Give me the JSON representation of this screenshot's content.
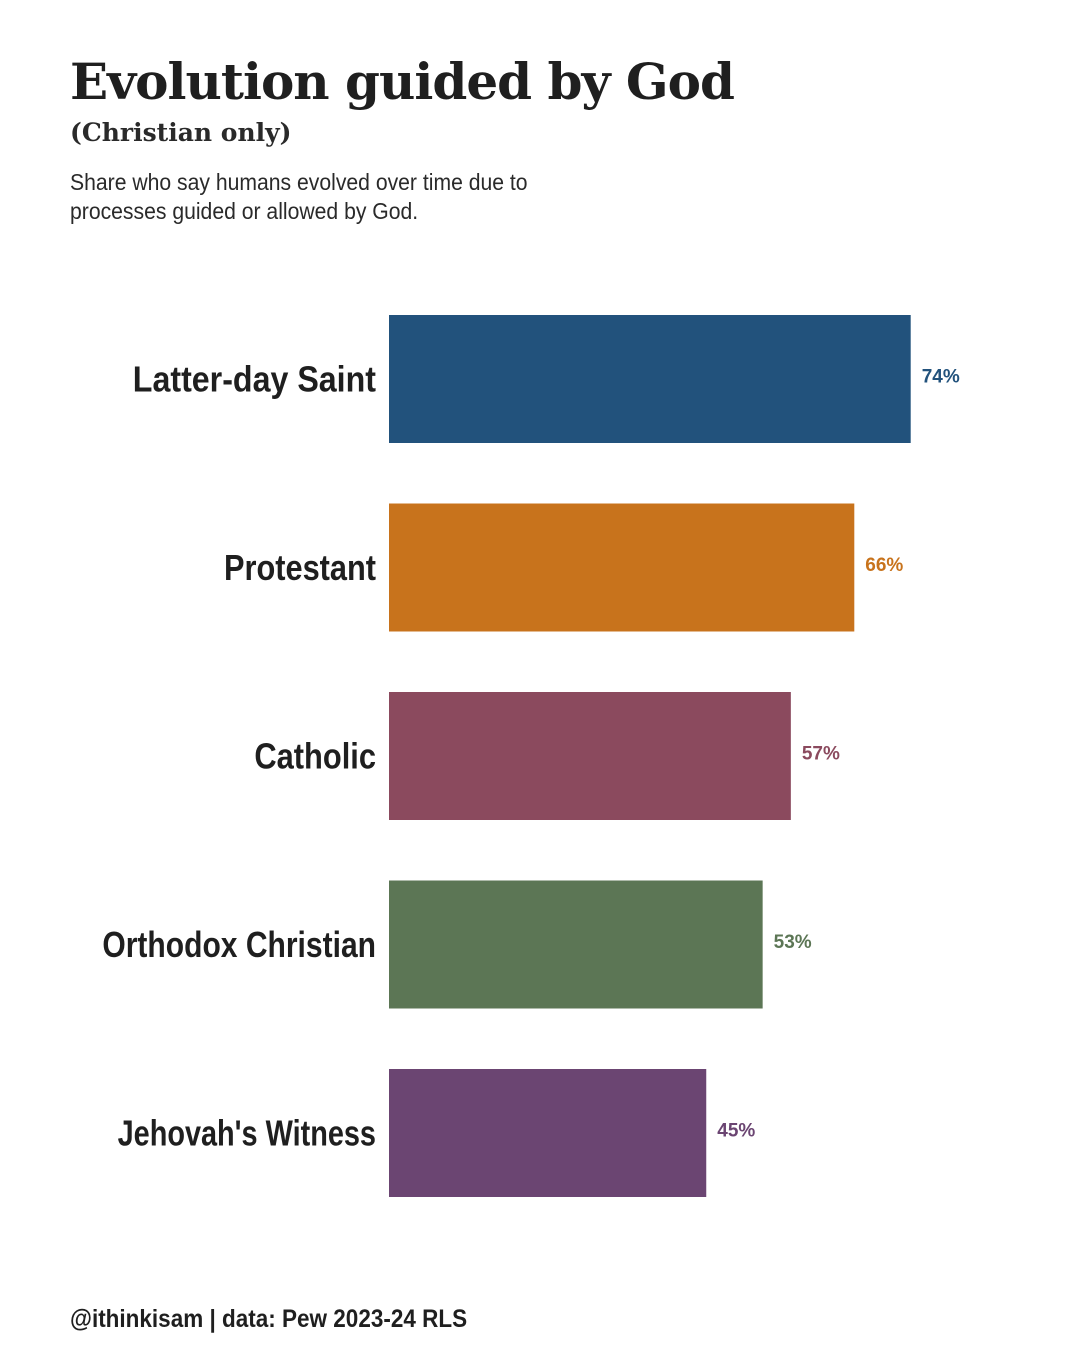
{
  "header": {
    "title": "Evolution guided by God",
    "subtitle": "(Christian only)",
    "description": "Share who say humans evolved over time due to processes guided or allowed by God."
  },
  "footer": {
    "caption": "@ithinkisam | data: Pew 2023-24 RLS"
  },
  "chart_data": {
    "type": "bar",
    "orientation": "horizontal",
    "title": "Evolution guided by God",
    "subtitle": "(Christian only)",
    "xlabel": "",
    "ylabel": "",
    "xlim": [
      0,
      100
    ],
    "grid": false,
    "legend": "none",
    "value_suffix": "%",
    "categories": [
      "Latter-day Saint",
      "Protestant",
      "Catholic",
      "Orthodox Christian",
      "Jehovah's Witness"
    ],
    "values": [
      74,
      66,
      57,
      53,
      45
    ],
    "labels": [
      "74%",
      "66%",
      "57%",
      "53%",
      "45%"
    ],
    "colors": [
      "#22527c",
      "#c8731c",
      "#8b4a5e",
      "#5c7655",
      "#6b4572"
    ]
  }
}
